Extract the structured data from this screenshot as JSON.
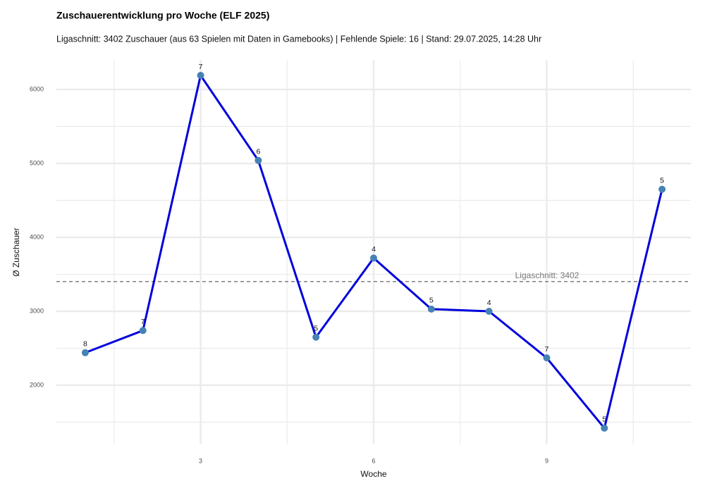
{
  "chart_data": {
    "type": "line",
    "title": "Zuschauerentwicklung pro Woche (ELF 2025)",
    "subtitle": "Ligaschnitt: 3402 Zuschauer (aus 63 Spielen mit Daten in Gamebooks) | Fehlende Spiele: 16 | Stand: 29.07.2025, 14:28 Uhr",
    "x_label": "Woche",
    "y_label": "Ø Zuschauer",
    "x": [
      1,
      2,
      3,
      4,
      5,
      6,
      7,
      8,
      9,
      10,
      11
    ],
    "series": [
      {
        "name": "Ø Zuschauer",
        "color": "#0000dd",
        "point_color": "#4682b4",
        "values": [
          2440,
          2740,
          6190,
          5040,
          2650,
          3720,
          3030,
          3000,
          2370,
          1420,
          4650
        ],
        "games": [
          8,
          7,
          7,
          6,
          5,
          4,
          5,
          4,
          7,
          5,
          5
        ]
      }
    ],
    "hline": {
      "value": 3402,
      "label": "Ligaschnitt: 3402"
    },
    "xlim": [
      0.5,
      11.5
    ],
    "xticks": [
      3,
      6,
      9
    ],
    "ylim": [
      1200,
      6400
    ],
    "yticks": [
      2000,
      3000,
      4000,
      5000,
      6000
    ],
    "grid": true
  }
}
